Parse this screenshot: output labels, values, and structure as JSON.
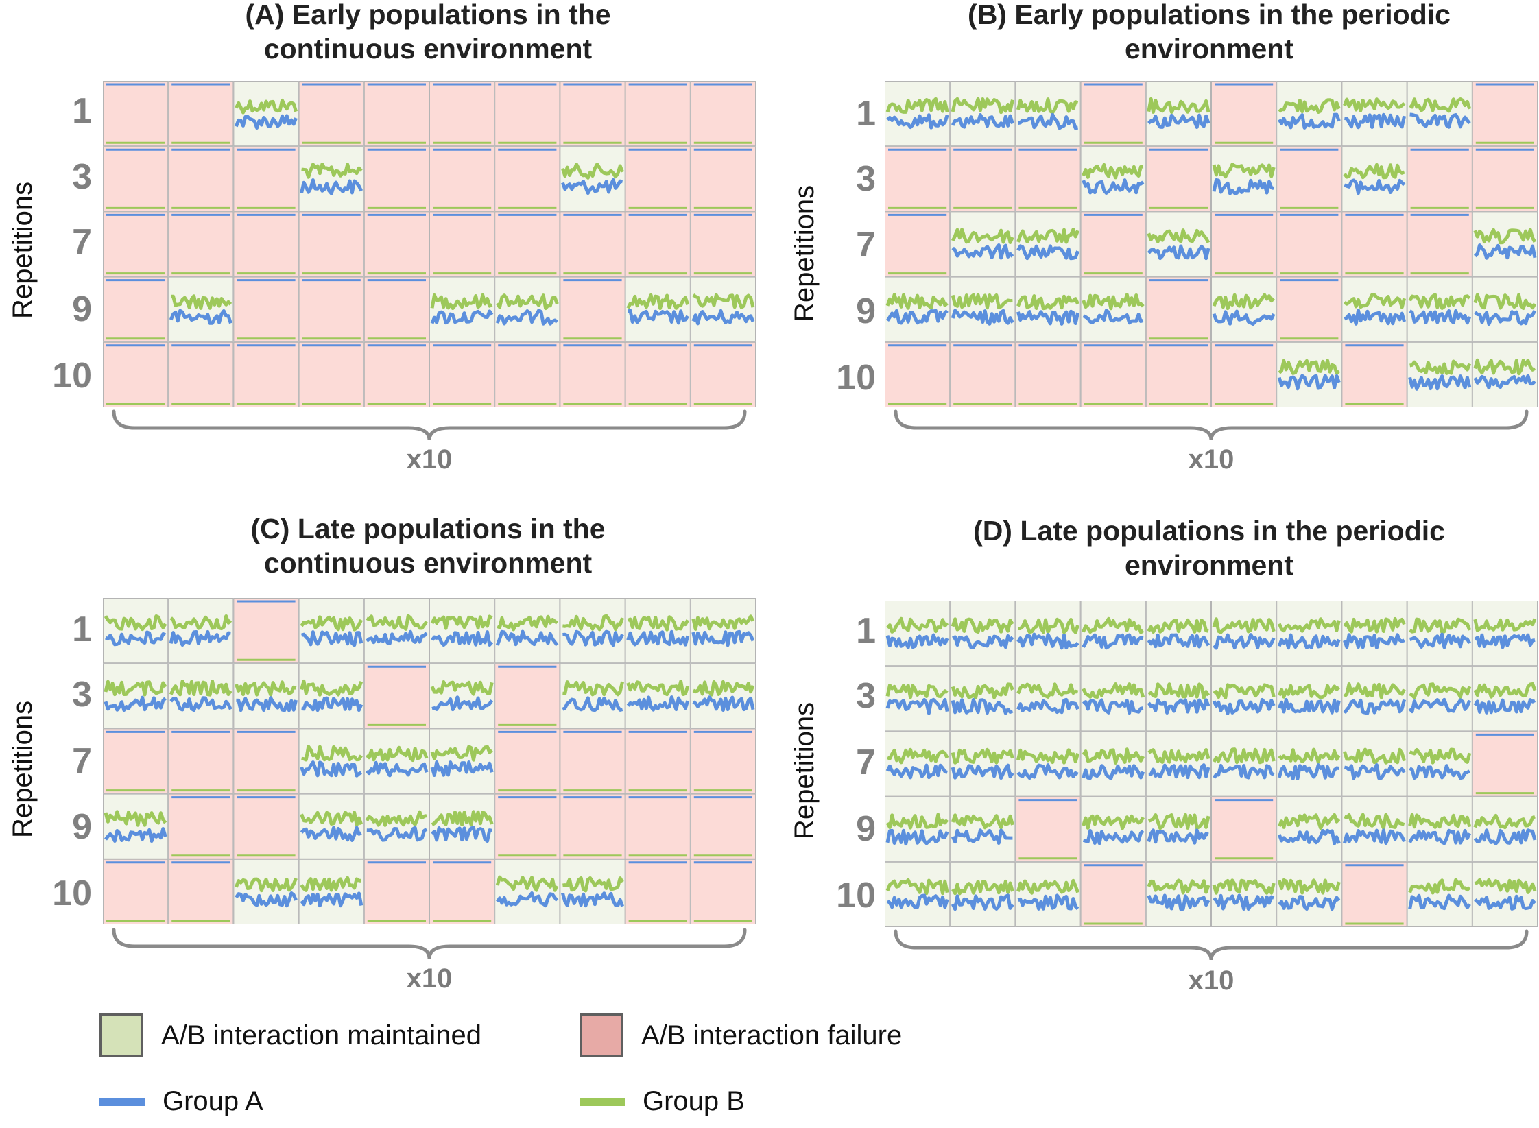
{
  "chart_data": [
    {
      "type": "grid of time-series plots",
      "title": "(A) Early populations in the\ncontinuous environment",
      "ylabel": "Repetitions",
      "xlabel": "x10",
      "rows": [
        "1",
        "3",
        "7",
        "9",
        "10"
      ],
      "cells": [
        [
          "F",
          "F",
          "M",
          "F",
          "F",
          "F",
          "F",
          "F",
          "F",
          "F"
        ],
        [
          "F",
          "F",
          "F",
          "M",
          "F",
          "F",
          "F",
          "M",
          "F",
          "F"
        ],
        [
          "F",
          "F",
          "F",
          "F",
          "F",
          "F",
          "F",
          "F",
          "F",
          "F"
        ],
        [
          "F",
          "M",
          "F",
          "F",
          "F",
          "M",
          "M",
          "F",
          "M",
          "M"
        ],
        [
          "F",
          "F",
          "F",
          "F",
          "F",
          "F",
          "F",
          "F",
          "F",
          "F"
        ]
      ]
    },
    {
      "type": "grid of time-series plots",
      "title": "(B) Early populations in the periodic\nenvironment",
      "ylabel": "Repetitions",
      "xlabel": "x10",
      "rows": [
        "1",
        "3",
        "7",
        "9",
        "10"
      ],
      "cells": [
        [
          "M",
          "M",
          "M",
          "F",
          "M",
          "F",
          "M",
          "M",
          "M",
          "F"
        ],
        [
          "F",
          "F",
          "F",
          "M",
          "F",
          "M",
          "F",
          "M",
          "F",
          "F"
        ],
        [
          "F",
          "M",
          "M",
          "F",
          "M",
          "F",
          "F",
          "F",
          "F",
          "M"
        ],
        [
          "M",
          "M",
          "M",
          "M",
          "F",
          "M",
          "F",
          "M",
          "M",
          "M"
        ],
        [
          "F",
          "F",
          "F",
          "F",
          "F",
          "F",
          "M",
          "F",
          "M",
          "M"
        ]
      ]
    },
    {
      "type": "grid of time-series plots",
      "title": "(C) Late populations in the\ncontinuous environment",
      "ylabel": "Repetitions",
      "xlabel": "x10",
      "rows": [
        "1",
        "3",
        "7",
        "9",
        "10"
      ],
      "cells": [
        [
          "M",
          "M",
          "F",
          "M",
          "M",
          "M",
          "M",
          "M",
          "M",
          "M"
        ],
        [
          "M",
          "M",
          "M",
          "M",
          "F",
          "M",
          "F",
          "M",
          "M",
          "M"
        ],
        [
          "F",
          "F",
          "F",
          "M",
          "M",
          "M",
          "F",
          "F",
          "F",
          "F"
        ],
        [
          "M",
          "F",
          "F",
          "M",
          "M",
          "M",
          "F",
          "F",
          "F",
          "F"
        ],
        [
          "F",
          "F",
          "M",
          "M",
          "F",
          "F",
          "M",
          "M",
          "F",
          "F"
        ]
      ]
    },
    {
      "type": "grid of time-series plots",
      "title": "(D) Late populations in the periodic\nenvironment",
      "ylabel": "Repetitions",
      "xlabel": "x10",
      "rows": [
        "1",
        "3",
        "7",
        "9",
        "10"
      ],
      "cells": [
        [
          "M",
          "M",
          "M",
          "M",
          "M",
          "M",
          "M",
          "M",
          "M",
          "M"
        ],
        [
          "M",
          "M",
          "M",
          "M",
          "M",
          "M",
          "M",
          "M",
          "M",
          "M"
        ],
        [
          "M",
          "M",
          "M",
          "M",
          "M",
          "M",
          "M",
          "M",
          "M",
          "F"
        ],
        [
          "M",
          "M",
          "F",
          "M",
          "M",
          "F",
          "M",
          "M",
          "M",
          "M"
        ],
        [
          "M",
          "M",
          "M",
          "F",
          "M",
          "M",
          "M",
          "F",
          "M",
          "M"
        ]
      ]
    }
  ],
  "legend": {
    "maintained_label": "A/B interaction maintained",
    "failure_label": "A/B interaction failure",
    "group_a_label": "Group A",
    "group_b_label": "Group B"
  },
  "colors": {
    "maintained": "#f2f5ea",
    "maintained_swatch": "#d5e2b8",
    "failure": "#fcdbd7",
    "failure_swatch": "#e7aaa6",
    "group_a": "#5b8fdd",
    "group_b": "#9dc85a",
    "cell_border": "#b4b4b4"
  }
}
